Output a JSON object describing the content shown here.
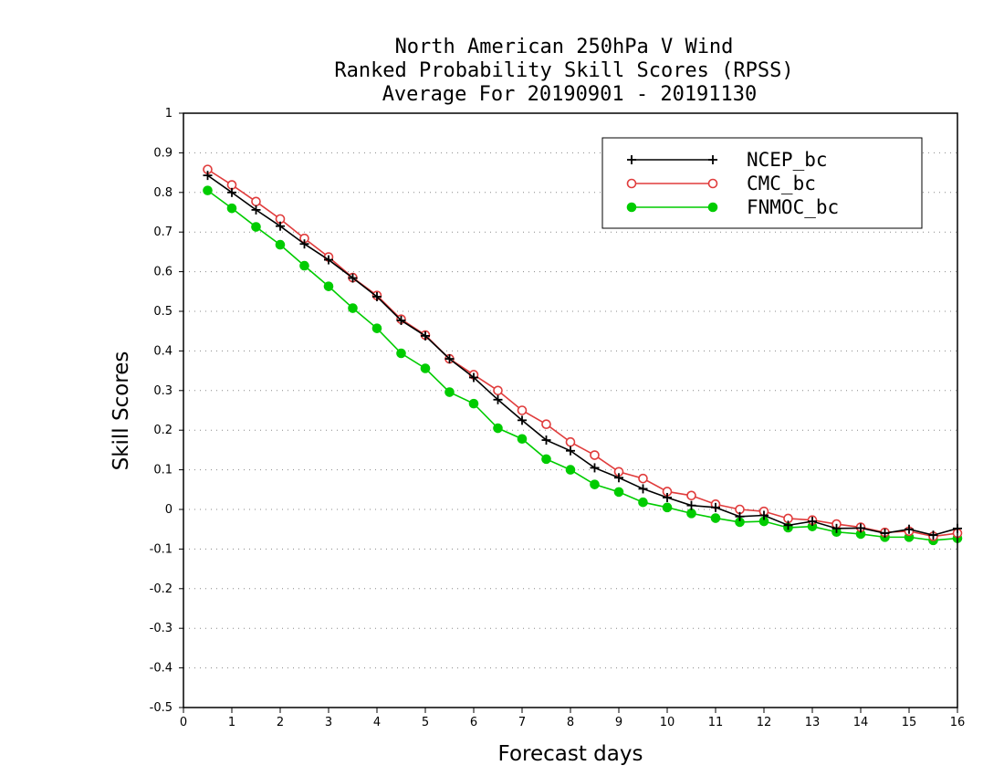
{
  "chart_data": {
    "type": "line",
    "title": [
      "North American 250hPa V Wind",
      "Ranked Probability Skill Scores (RPSS)",
      "Average For 20190901 - 20191130"
    ],
    "xlabel": "Forecast days",
    "ylabel": "Skill Scores",
    "xlim": [
      0,
      16
    ],
    "ylim": [
      -0.5,
      1
    ],
    "xticks": [
      "0",
      "1",
      "2",
      "3",
      "4",
      "5",
      "6",
      "7",
      "8",
      "9",
      "10",
      "11",
      "12",
      "13",
      "14",
      "15",
      "16"
    ],
    "yticks": [
      "1",
      "0.9",
      "0.8",
      "0.7",
      "0.6",
      "0.5",
      "0.4",
      "0.3",
      "0.2",
      "0.1",
      "0",
      "-0.1",
      "-0.2",
      "-0.3",
      "-0.4",
      "-0.5"
    ],
    "grid": true,
    "legend_position": "top-right",
    "x": [
      0.5,
      1,
      1.5,
      2,
      2.5,
      3,
      3.5,
      4,
      4.5,
      5,
      5.5,
      6,
      6.5,
      7,
      7.5,
      8,
      8.5,
      9,
      9.5,
      10,
      10.5,
      11,
      11.5,
      12,
      12.5,
      13,
      13.5,
      14,
      14.5,
      15,
      15.5,
      16
    ],
    "series": [
      {
        "name": "NCEP_bc",
        "color": "#000000",
        "marker": "plus",
        "values": [
          0.843,
          0.8,
          0.756,
          0.715,
          0.67,
          0.63,
          0.584,
          0.537,
          0.477,
          0.438,
          0.38,
          0.333,
          0.277,
          0.225,
          0.175,
          0.148,
          0.105,
          0.08,
          0.052,
          0.03,
          0.01,
          0.005,
          -0.018,
          -0.015,
          -0.04,
          -0.03,
          -0.048,
          -0.047,
          -0.06,
          -0.05,
          -0.065,
          -0.048
        ]
      },
      {
        "name": "CMC_bc",
        "color": "#e03c3c",
        "marker": "open-circle",
        "values": [
          0.858,
          0.819,
          0.777,
          0.733,
          0.684,
          0.637,
          0.585,
          0.54,
          0.48,
          0.44,
          0.38,
          0.34,
          0.3,
          0.25,
          0.215,
          0.17,
          0.137,
          0.095,
          0.078,
          0.045,
          0.035,
          0.013,
          0.0,
          -0.005,
          -0.023,
          -0.027,
          -0.037,
          -0.045,
          -0.058,
          -0.055,
          -0.068,
          -0.06
        ]
      },
      {
        "name": "FNMOC_bc",
        "color": "#00cc00",
        "marker": "filled-circle",
        "values": [
          0.805,
          0.76,
          0.713,
          0.668,
          0.615,
          0.563,
          0.508,
          0.457,
          0.394,
          0.356,
          0.296,
          0.267,
          0.205,
          0.178,
          0.127,
          0.1,
          0.063,
          0.044,
          0.018,
          0.005,
          -0.01,
          -0.022,
          -0.032,
          -0.03,
          -0.046,
          -0.043,
          -0.057,
          -0.062,
          -0.07,
          -0.07,
          -0.078,
          -0.073
        ]
      }
    ]
  }
}
